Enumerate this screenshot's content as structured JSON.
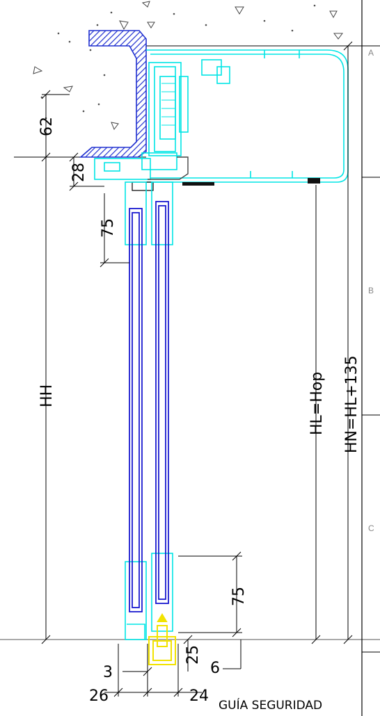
{
  "dimensions": {
    "d62": "62",
    "d28": "28",
    "d75_top": "75",
    "hh": "HH",
    "hl": "HL=Hop",
    "hn": "HN=HL+135",
    "d75_bottom": "75",
    "d25": "25",
    "d3": "3",
    "d6": "6",
    "d26": "26",
    "d24": "24"
  },
  "zones": {
    "a": "A",
    "b": "B",
    "c": "C"
  },
  "caption": "GUÍA SEGURIDAD",
  "colors": {
    "profile": "#00e5e5",
    "glass": "#1a1ad0",
    "hatch": "#1f2fd0",
    "guide": "#f2e300",
    "concrete_marks": "#444444"
  }
}
